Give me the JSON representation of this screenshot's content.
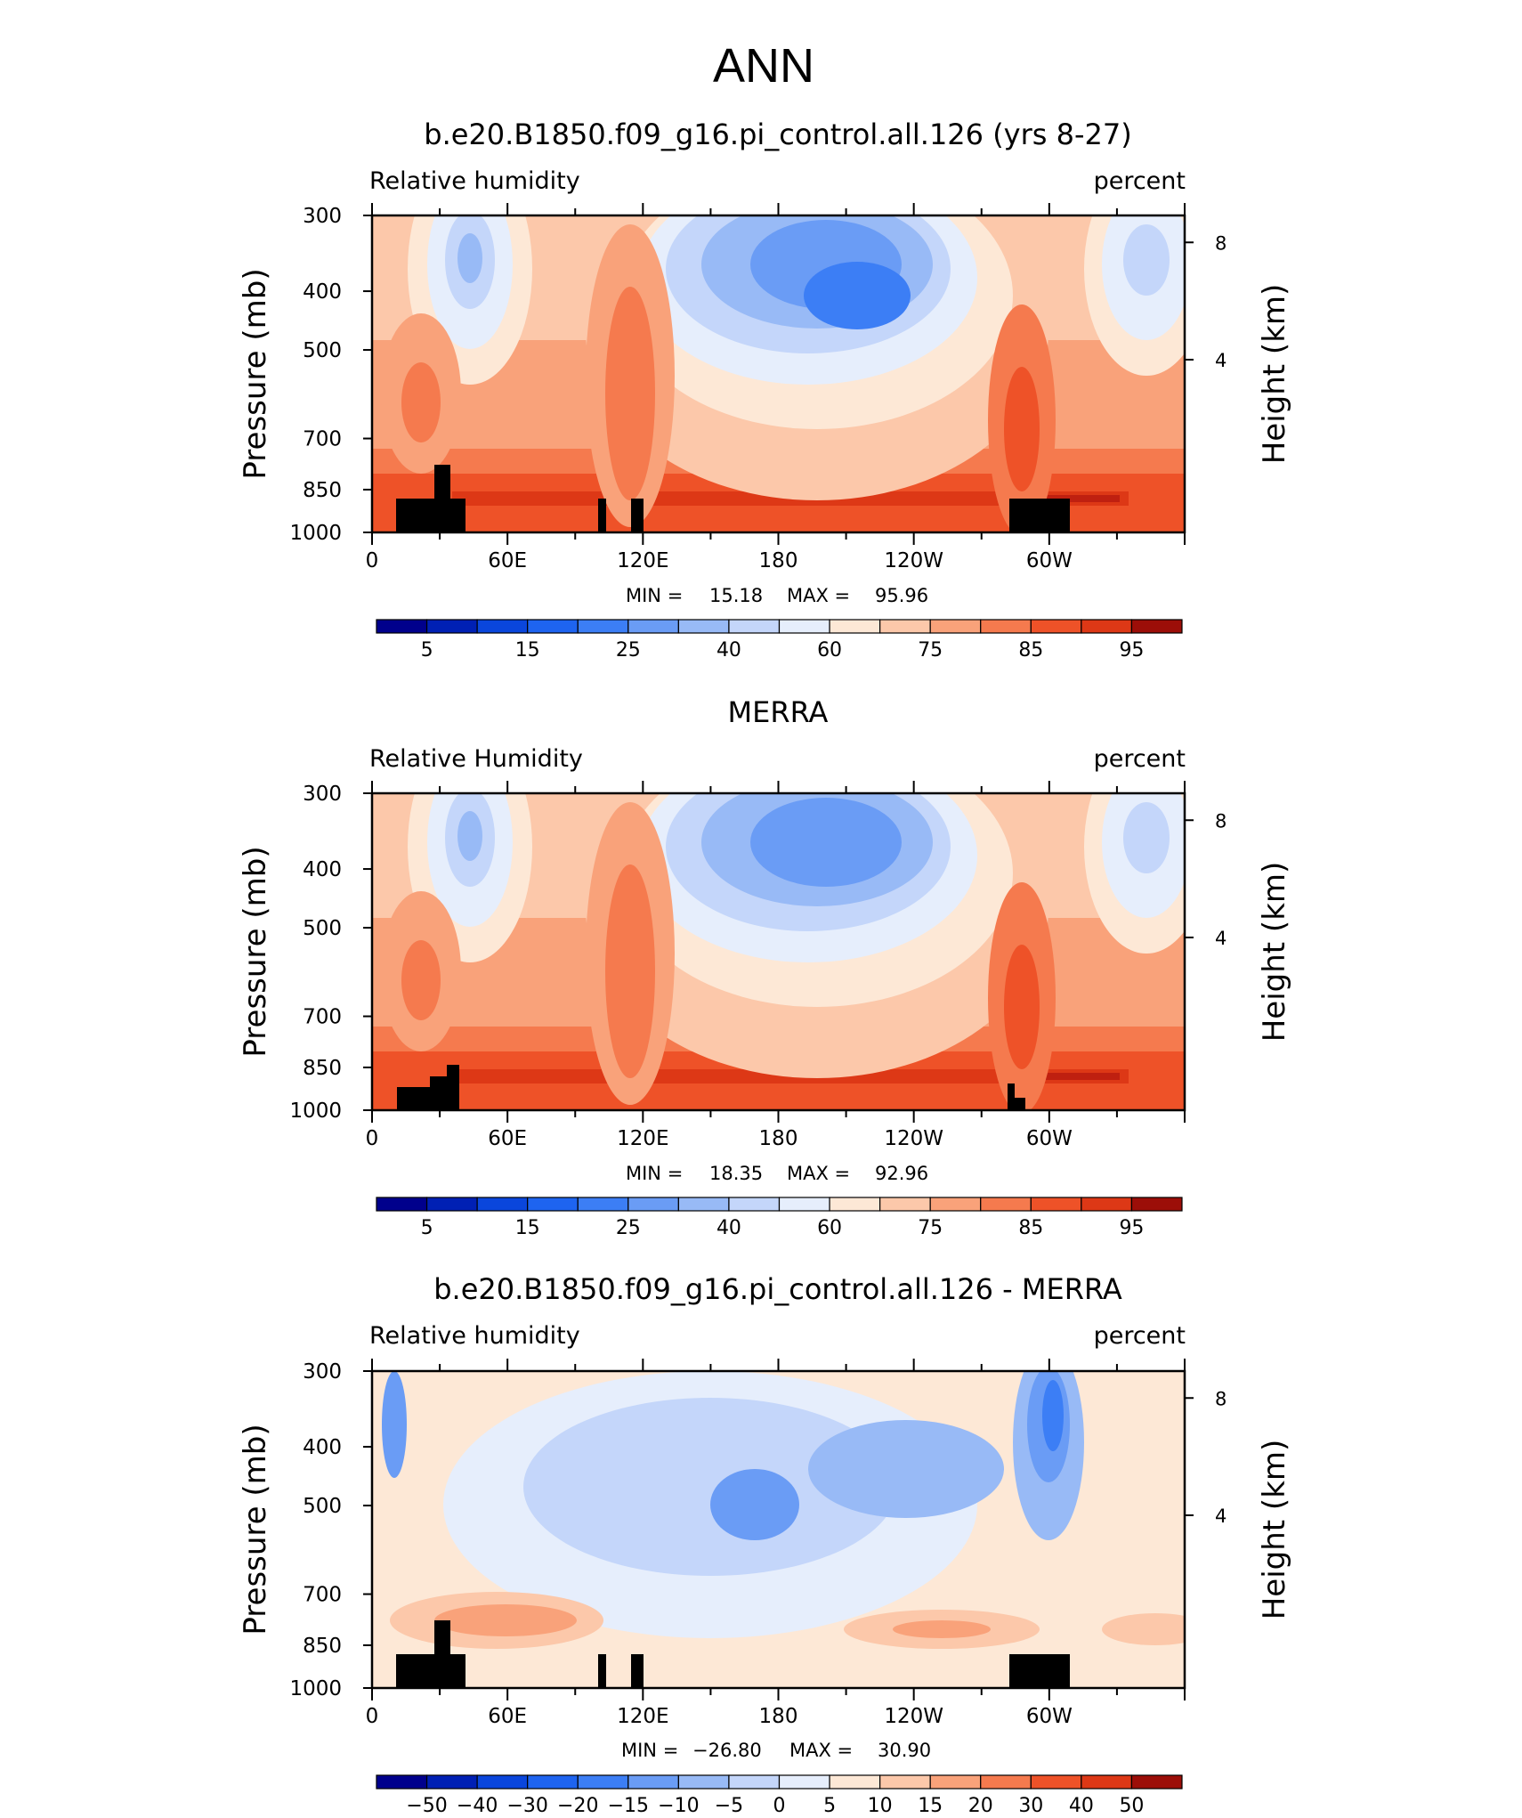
{
  "supertitle": "ANN",
  "colors": {
    "land_mask": "#000000",
    "abs_scale": [
      "#00008c",
      "#0020b4",
      "#0a46dc",
      "#1e64f0",
      "#3c7ef5",
      "#6a9cf5",
      "#98baf6",
      "#c4d6fa",
      "#e6eefc",
      "#fde8d6",
      "#fcc8aa",
      "#f9a27a",
      "#f57a4e",
      "#ee5228",
      "#dd3816",
      "#bf2010",
      "#9c0e08",
      "#780000"
    ],
    "diff_scale": [
      "#00008c",
      "#0020b4",
      "#0a46dc",
      "#1e64f0",
      "#3c7ef5",
      "#6a9cf5",
      "#98baf6",
      "#c4d6fa",
      "#e6eefc",
      "#fde8d6",
      "#fcc8aa",
      "#f9a27a",
      "#f57a4e",
      "#ee5228",
      "#dd3816",
      "#bf2010",
      "#9c0e08",
      "#780000"
    ]
  },
  "chart_data": [
    {
      "type": "heatmap",
      "title": "b.e20.B1850.f09_g16.pi_control.all.126 (yrs 8-27)",
      "left_string": "Relative humidity",
      "right_string": "percent",
      "ylabel": "Pressure (mb)",
      "y2label": "Height (km)",
      "xticks": [
        "0",
        "60E",
        "120E",
        "180",
        "120W",
        "60W"
      ],
      "yticks": [
        "300",
        "400",
        "500",
        "700",
        "850",
        "1000"
      ],
      "y2ticks": [
        "8",
        "4"
      ],
      "stats": {
        "min_label": "MIN =",
        "min": "15.18",
        "max_label": "MAX =",
        "max": "95.96"
      },
      "colorbar_labels": [
        "5",
        "15",
        "25",
        "40",
        "60",
        "75",
        "85",
        "95"
      ],
      "ylim": [
        1000,
        300
      ],
      "xlim": [
        0,
        360
      ]
    },
    {
      "type": "heatmap",
      "title": "MERRA",
      "left_string": "Relative Humidity",
      "right_string": "percent",
      "ylabel": "Pressure (mb)",
      "y2label": "Height (km)",
      "xticks": [
        "0",
        "60E",
        "120E",
        "180",
        "120W",
        "60W"
      ],
      "yticks": [
        "300",
        "400",
        "500",
        "700",
        "850",
        "1000"
      ],
      "y2ticks": [
        "8",
        "4"
      ],
      "stats": {
        "min_label": "MIN =",
        "min": "18.35",
        "max_label": "MAX =",
        "max": "92.96"
      },
      "colorbar_labels": [
        "5",
        "15",
        "25",
        "40",
        "60",
        "75",
        "85",
        "95"
      ],
      "ylim": [
        1000,
        300
      ],
      "xlim": [
        0,
        360
      ]
    },
    {
      "type": "heatmap",
      "title": "b.e20.B1850.f09_g16.pi_control.all.126 - MERRA",
      "left_string": "Relative humidity",
      "right_string": "percent",
      "ylabel": "Pressure (mb)",
      "y2label": "Height (km)",
      "xticks": [
        "0",
        "60E",
        "120E",
        "180",
        "120W",
        "60W"
      ],
      "yticks": [
        "300",
        "400",
        "500",
        "700",
        "850",
        "1000"
      ],
      "y2ticks": [
        "8",
        "4"
      ],
      "stats": {
        "min_label": "MIN =",
        "min": "−26.80",
        "max_label": "MAX =",
        "max": "30.90"
      },
      "colorbar_labels": [
        "−50",
        "−40",
        "−30",
        "−20",
        "−15",
        "−10",
        "−5",
        "0",
        "5",
        "10",
        "15",
        "20",
        "30",
        "40",
        "50"
      ],
      "ylim": [
        1000,
        300
      ],
      "xlim": [
        0,
        360
      ]
    }
  ]
}
